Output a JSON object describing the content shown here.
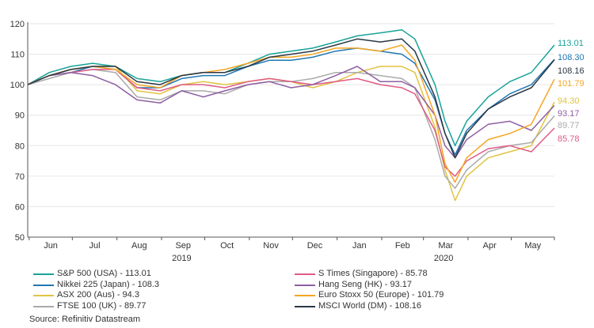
{
  "chart_data": {
    "type": "line",
    "y_range": [
      50,
      120
    ],
    "y_ticks": [
      "50",
      "60",
      "70",
      "80",
      "90",
      "100",
      "110",
      "120"
    ],
    "x_ticks": [
      "Jun",
      "Jul",
      "Aug",
      "Sep",
      "Oct",
      "Nov",
      "Dec",
      "Jan",
      "Feb",
      "Mar",
      "Apr",
      "May"
    ],
    "years": [
      "2019",
      "2020"
    ],
    "x": [
      "2019-05-31",
      "2019-06-15",
      "2019-06-30",
      "2019-07-15",
      "2019-07-31",
      "2019-08-15",
      "2019-08-31",
      "2019-09-15",
      "2019-09-30",
      "2019-10-15",
      "2019-10-31",
      "2019-11-15",
      "2019-11-30",
      "2019-12-15",
      "2019-12-31",
      "2020-01-15",
      "2020-01-31",
      "2020-02-15",
      "2020-02-24",
      "2020-03-09",
      "2020-03-16",
      "2020-03-23",
      "2020-03-31",
      "2020-04-15",
      "2020-04-30",
      "2020-05-15",
      "2020-05-31"
    ],
    "series": [
      {
        "name": "S&P 500 (USA) - 113.01",
        "color": "#17a398",
        "end_label": "113.01",
        "values": [
          100,
          104,
          106,
          107,
          106,
          102,
          101,
          103,
          104,
          104,
          107,
          110,
          111,
          112,
          114,
          116,
          117,
          118,
          115,
          100,
          88,
          80,
          88,
          96,
          101,
          104,
          113.01
        ]
      },
      {
        "name": "Nikkei 225 (Japan) - 108.3",
        "color": "#1f77b4",
        "end_label": "108.30",
        "values": [
          100,
          103,
          104,
          106,
          105,
          99,
          99,
          102,
          103,
          103,
          106,
          108,
          108,
          109,
          111,
          112,
          111,
          110,
          107,
          95,
          84,
          77,
          85,
          92,
          97,
          100,
          108.3
        ]
      },
      {
        "name": "ASX 200 (Aus) - 94.3",
        "color": "#e0c440",
        "end_label": "94.30",
        "values": [
          100,
          103,
          105,
          106,
          106,
          98,
          97,
          100,
          101,
          100,
          101,
          102,
          101,
          99,
          101,
          104,
          106,
          106,
          104,
          86,
          72,
          62,
          70,
          76,
          78,
          80,
          94.3
        ]
      },
      {
        "name": "FTSE 100 (UK) - 89.77",
        "color": "#aaaaaa",
        "end_label": "89.77",
        "values": [
          100,
          102,
          104,
          105,
          104,
          96,
          95,
          98,
          98,
          97,
          100,
          101,
          101,
          102,
          104,
          104,
          103,
          102,
          99,
          82,
          70,
          66,
          72,
          78,
          80,
          81,
          89.77
        ]
      },
      {
        "name": "S Times (Singapore) - 85.78",
        "color": "#e05a85",
        "end_label": "85.78",
        "values": [
          100,
          103,
          104,
          105,
          105,
          99,
          98,
          100,
          100,
          99,
          101,
          102,
          101,
          100,
          101,
          102,
          100,
          99,
          97,
          85,
          73,
          70,
          75,
          79,
          80,
          78,
          85.78
        ]
      },
      {
        "name": "Hang Seng (HK) - 93.17",
        "color": "#8e5ea2",
        "end_label": "93.17",
        "values": [
          100,
          103,
          104,
          103,
          100,
          95,
          94,
          98,
          96,
          98,
          100,
          101,
          99,
          100,
          103,
          106,
          101,
          101,
          99,
          90,
          80,
          76,
          82,
          87,
          88,
          85,
          93.17
        ]
      },
      {
        "name": "Euro Stoxx 50 (Europe) - 101.79",
        "color": "#f5a623",
        "end_label": "101.79",
        "values": [
          100,
          103,
          105,
          106,
          105,
          100,
          99,
          103,
          104,
          105,
          107,
          109,
          109,
          110,
          112,
          112,
          111,
          113,
          108,
          90,
          74,
          68,
          76,
          82,
          84,
          87,
          101.79
        ]
      },
      {
        "name": "MSCI World (DM) - 108.16",
        "color": "#2b3744",
        "end_label": "108.16",
        "values": [
          100,
          103,
          105,
          106,
          106,
          101,
          100,
          103,
          104,
          104,
          106,
          109,
          110,
          111,
          113,
          115,
          114,
          115,
          111,
          96,
          84,
          76,
          84,
          92,
          96,
          99,
          108.16
        ]
      }
    ]
  },
  "source": "Source: Refinitiv Datastream"
}
